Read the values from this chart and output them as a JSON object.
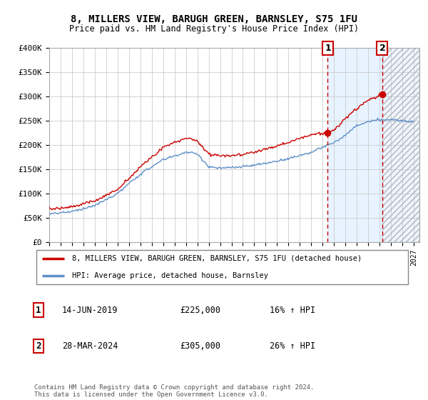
{
  "title_line1": "8, MILLERS VIEW, BARUGH GREEN, BARNSLEY, S75 1FU",
  "title_line2": "Price paid vs. HM Land Registry's House Price Index (HPI)",
  "ylim": [
    0,
    400000
  ],
  "xlim_start": 1995.0,
  "xlim_end": 2027.5,
  "yticks": [
    0,
    50000,
    100000,
    150000,
    200000,
    250000,
    300000,
    350000,
    400000
  ],
  "ytick_labels": [
    "£0",
    "£50K",
    "£100K",
    "£150K",
    "£200K",
    "£250K",
    "£300K",
    "£350K",
    "£400K"
  ],
  "hpi_color": "#6090c8",
  "property_color": "#cc0000",
  "sale1_date": 2019.45,
  "sale1_price": 225000,
  "sale2_date": 2024.24,
  "sale2_price": 305000,
  "legend_label1": "8, MILLERS VIEW, BARUGH GREEN, BARNSLEY, S75 1FU (detached house)",
  "legend_label2": "HPI: Average price, detached house, Barnsley",
  "transaction1_label": "1",
  "transaction1_date": "14-JUN-2019",
  "transaction1_price": "£225,000",
  "transaction1_hpi": "16% ↑ HPI",
  "transaction2_label": "2",
  "transaction2_date": "28-MAR-2024",
  "transaction2_price": "£305,000",
  "transaction2_hpi": "26% ↑ HPI",
  "footnote": "Contains HM Land Registry data © Crown copyright and database right 2024.\nThis data is licensed under the Open Government Licence v3.0.",
  "background_color": "#ffffff",
  "grid_color": "#cccccc",
  "shade_start": 2019.45,
  "shade_end": 2024.24,
  "shade_color": "#ddeeff",
  "hatch_start": 2024.24,
  "hatch_color": "#c8d8e8"
}
